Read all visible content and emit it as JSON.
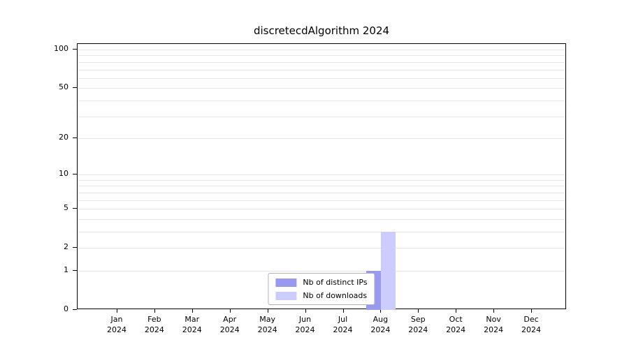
{
  "chart_data": {
    "type": "bar",
    "title": "discretecdAlgorithm 2024",
    "categories": [
      {
        "month": "Jan",
        "year": "2024"
      },
      {
        "month": "Feb",
        "year": "2024"
      },
      {
        "month": "Mar",
        "year": "2024"
      },
      {
        "month": "Apr",
        "year": "2024"
      },
      {
        "month": "May",
        "year": "2024"
      },
      {
        "month": "Jun",
        "year": "2024"
      },
      {
        "month": "Jul",
        "year": "2024"
      },
      {
        "month": "Aug",
        "year": "2024"
      },
      {
        "month": "Sep",
        "year": "2024"
      },
      {
        "month": "Oct",
        "year": "2024"
      },
      {
        "month": "Nov",
        "year": "2024"
      },
      {
        "month": "Dec",
        "year": "2024"
      }
    ],
    "y_axis": {
      "scale": "log10(1+value)",
      "ticks": [
        100,
        50,
        20,
        10,
        5,
        2,
        1,
        0
      ],
      "gridlines": [
        1,
        2,
        3,
        4,
        5,
        6,
        7,
        8,
        9,
        10,
        20,
        30,
        40,
        50,
        60,
        70,
        80,
        90,
        100
      ],
      "range": [
        0,
        110
      ],
      "grid": "on"
    },
    "series": [
      {
        "name": "Nb of distinct IPs",
        "color": "#9999ee",
        "values": [
          0,
          0,
          0,
          0,
          0,
          0,
          0,
          1,
          0,
          0,
          0,
          0
        ]
      },
      {
        "name": "Nb of downloads",
        "color": "#ccccff",
        "values": [
          0,
          0,
          0,
          0,
          0,
          0,
          0,
          3,
          0,
          0,
          0,
          0
        ]
      }
    ],
    "legend": {
      "position": "bottom-center-inside",
      "entries": [
        "Nb of distinct IPs",
        "Nb of downloads"
      ]
    }
  }
}
